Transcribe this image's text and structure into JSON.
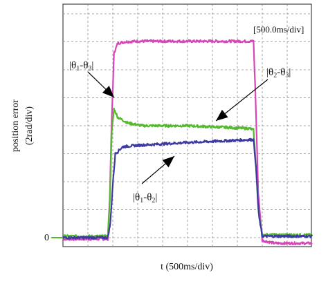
{
  "chart_data": {
    "type": "line",
    "title": "",
    "xlabel": "t (500ms/div)",
    "ylabel": "position error",
    "ylabel_unit": "(2rad/div)",
    "scale_note": "[500.0ms/div]",
    "zero_label": "0",
    "x_unit": "div",
    "y_unit": "div",
    "xlim": [
      0,
      10
    ],
    "ylim": [
      0,
      8
    ],
    "grid": true,
    "series": [
      {
        "name": "|θ1-θ3|",
        "color": "#d646b7",
        "x": [
          0,
          1.8,
          1.88,
          1.96,
          2.05,
          2.2,
          2.5,
          3,
          5,
          7.5,
          7.65,
          7.73,
          7.84,
          8,
          8.5,
          10
        ],
        "values": [
          -0.05,
          -0.05,
          1.5,
          4.3,
          6.6,
          6.95,
          7.0,
          7.02,
          7.02,
          7.02,
          7.02,
          5.0,
          1.6,
          -0.1,
          -0.2,
          -0.2
        ]
      },
      {
        "name": "|θ2-θ3|",
        "color": "#55b82e",
        "x": [
          0,
          1.8,
          1.88,
          1.96,
          2.05,
          2.2,
          2.6,
          3.2,
          5,
          7.5,
          7.65,
          7.73,
          7.84,
          8,
          8.5,
          10
        ],
        "values": [
          0.05,
          0.05,
          1.3,
          3.8,
          4.6,
          4.3,
          4.1,
          4.0,
          4.0,
          3.9,
          3.85,
          2.8,
          1.0,
          0.1,
          0.1,
          0.1
        ]
      },
      {
        "name": "|θ1-θ2|",
        "color": "#3c3aa0",
        "x": [
          0,
          1.8,
          1.9,
          2.0,
          2.1,
          2.4,
          3,
          5,
          7.5,
          7.65,
          7.75,
          7.86,
          8,
          8.5,
          10
        ],
        "values": [
          0.0,
          0.0,
          0.5,
          1.9,
          3.0,
          3.25,
          3.3,
          3.4,
          3.5,
          3.5,
          2.5,
          0.8,
          0.05,
          0.05,
          0.05
        ]
      }
    ],
    "annotations": [
      {
        "text_a": "|θ",
        "sub_a": "1",
        "text_b": "-θ",
        "sub_b": "3",
        "text_c": "|",
        "target_series": "|θ1-θ3|"
      },
      {
        "text_a": "|θ",
        "sub_a": "2",
        "text_b": "-θ",
        "sub_b": "3",
        "text_c": "|",
        "target_series": "|θ2-θ3|"
      },
      {
        "text_a": "|θ",
        "sub_a": "1",
        "text_b": "-θ",
        "sub_b": "2",
        "text_c": "|",
        "target_series": "|θ1-θ2|"
      }
    ]
  }
}
